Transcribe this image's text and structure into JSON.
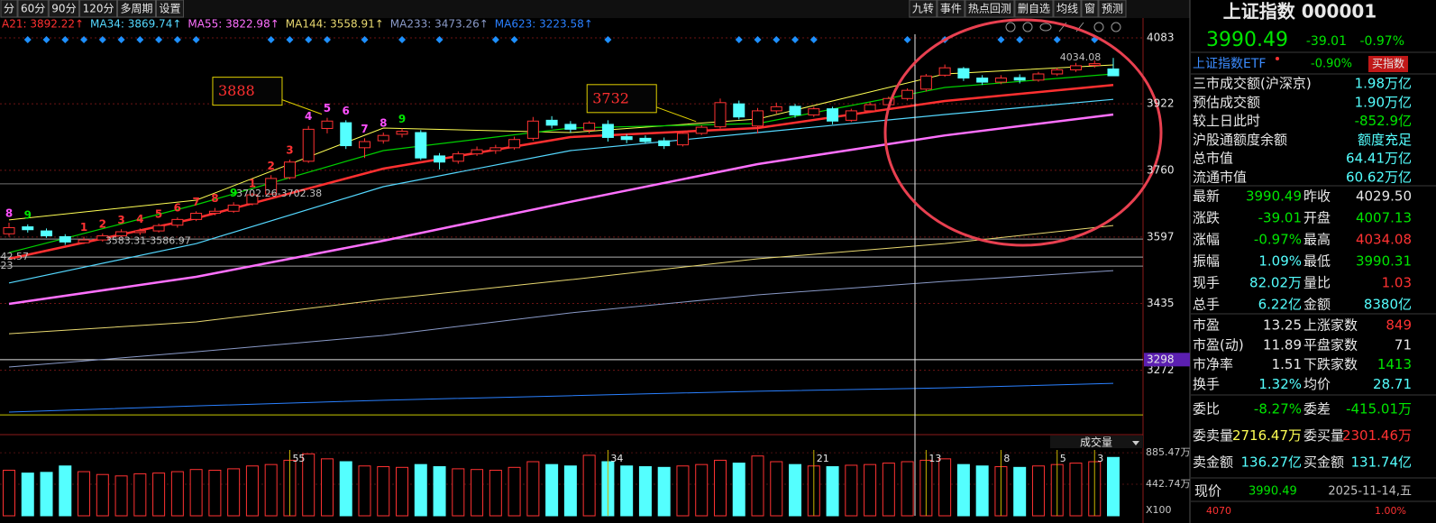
{
  "toolbar": {
    "left": [
      "分",
      "60分",
      "90分",
      "120分",
      "多周期",
      "设置"
    ],
    "right": [
      "九转",
      "事件",
      "热点回测",
      "删自选",
      "均线",
      "窗",
      "预测"
    ]
  },
  "chart_data": [
    {
      "type": "candlestick",
      "ylim": [
        3115,
        4105
      ],
      "yticks": [
        4083,
        3922,
        3760,
        3597,
        3435,
        3272
      ],
      "grid": true,
      "grid_color": "#6e1414",
      "up_color": "#ff3232",
      "down_color": "#54ffff",
      "ohlc": [
        [
          3605,
          3632,
          3598,
          3620
        ],
        [
          3622,
          3628,
          3608,
          3615
        ],
        [
          3612,
          3618,
          3595,
          3600
        ],
        [
          3598,
          3604,
          3578,
          3585
        ],
        [
          3583,
          3598,
          3580,
          3590
        ],
        [
          3590,
          3606,
          3586,
          3600
        ],
        [
          3600,
          3616,
          3596,
          3610
        ],
        [
          3608,
          3618,
          3602,
          3612
        ],
        [
          3612,
          3630,
          3608,
          3625
        ],
        [
          3626,
          3645,
          3620,
          3640
        ],
        [
          3640,
          3660,
          3636,
          3655
        ],
        [
          3655,
          3668,
          3650,
          3660
        ],
        [
          3660,
          3682,
          3656,
          3675
        ],
        [
          3678,
          3705,
          3674,
          3700
        ],
        [
          3702,
          3748,
          3700,
          3740
        ],
        [
          3742,
          3786,
          3738,
          3780
        ],
        [
          3782,
          3868,
          3778,
          3860
        ],
        [
          3862,
          3888,
          3850,
          3880
        ],
        [
          3876,
          3882,
          3812,
          3820
        ],
        [
          3815,
          3838,
          3790,
          3830
        ],
        [
          3832,
          3852,
          3825,
          3845
        ],
        [
          3848,
          3862,
          3840,
          3855
        ],
        [
          3852,
          3858,
          3785,
          3790
        ],
        [
          3795,
          3802,
          3762,
          3780
        ],
        [
          3782,
          3806,
          3776,
          3800
        ],
        [
          3800,
          3818,
          3795,
          3810
        ],
        [
          3808,
          3822,
          3800,
          3815
        ],
        [
          3815,
          3842,
          3810,
          3835
        ],
        [
          3838,
          3890,
          3832,
          3880
        ],
        [
          3882,
          3892,
          3862,
          3870
        ],
        [
          3872,
          3880,
          3852,
          3860
        ],
        [
          3858,
          3880,
          3850,
          3875
        ],
        [
          3872,
          3882,
          3830,
          3840
        ],
        [
          3842,
          3848,
          3826,
          3835
        ],
        [
          3838,
          3845,
          3825,
          3830
        ],
        [
          3832,
          3840,
          3812,
          3820
        ],
        [
          3822,
          3856,
          3818,
          3850
        ],
        [
          3850,
          3870,
          3846,
          3865
        ],
        [
          3866,
          3935,
          3862,
          3925
        ],
        [
          3922,
          3930,
          3884,
          3890
        ],
        [
          3868,
          3912,
          3850,
          3905
        ],
        [
          3905,
          3925,
          3898,
          3915
        ],
        [
          3916,
          3922,
          3888,
          3895
        ],
        [
          3895,
          3915,
          3890,
          3910
        ],
        [
          3910,
          3915,
          3872,
          3880
        ],
        [
          3882,
          3910,
          3878,
          3905
        ],
        [
          3905,
          3926,
          3900,
          3920
        ],
        [
          3920,
          3940,
          3915,
          3935
        ],
        [
          3935,
          3960,
          3930,
          3955
        ],
        [
          3958,
          3995,
          3952,
          3990
        ],
        [
          3992,
          4018,
          3988,
          4010
        ],
        [
          4008,
          4012,
          3978,
          3985
        ],
        [
          3985,
          3992,
          3968,
          3975
        ],
        [
          3975,
          3992,
          3970,
          3985
        ],
        [
          3986,
          3994,
          3972,
          3980
        ],
        [
          3980,
          4000,
          3976,
          3995
        ],
        [
          3995,
          4010,
          3990,
          4005
        ],
        [
          4005,
          4022,
          4000,
          4015
        ],
        [
          4016,
          4028,
          4010,
          4020
        ],
        [
          4007.13,
          4034.08,
          3990.31,
          3990.49
        ]
      ],
      "lines": [
        {
          "color": "#ffff54",
          "width": 1,
          "x": [
            0,
            10,
            20,
            30,
            40,
            50,
            59
          ],
          "values": [
            3639,
            3687,
            3863,
            3852,
            3885,
            3995,
            4017
          ]
        },
        {
          "color": "#00d000",
          "width": 1.2,
          "x": [
            0,
            10,
            20,
            30,
            40,
            50,
            59
          ],
          "values": [
            3559,
            3676,
            3808,
            3863,
            3874,
            3962,
            3995
          ]
        },
        {
          "label": "A21: 3892.22↑",
          "color": "#ff3030",
          "width": 2.5,
          "x": [
            0,
            10,
            20,
            30,
            40,
            50,
            59
          ],
          "values": [
            3544,
            3643,
            3764,
            3841,
            3863,
            3929,
            3968
          ]
        },
        {
          "label": "MA34: 3869.74↑",
          "color": "#54d8ff",
          "width": 1.2,
          "x": [
            0,
            10,
            20,
            30,
            40,
            50,
            59
          ],
          "values": [
            3485,
            3581,
            3720,
            3808,
            3852,
            3896,
            3933
          ]
        },
        {
          "label": "MA55: 3822.98↑",
          "color": "#ff70ff",
          "width": 2.5,
          "x": [
            0,
            10,
            20,
            30,
            40,
            50,
            59
          ],
          "values": [
            3434,
            3500,
            3588,
            3683,
            3775,
            3845,
            3896
          ]
        },
        {
          "label": "MA144: 3558.91↑",
          "color": "#e8d870",
          "width": 1,
          "x": [
            0,
            10,
            20,
            30,
            40,
            50,
            59
          ],
          "values": [
            3361,
            3390,
            3445,
            3493,
            3544,
            3581,
            3625
          ]
        },
        {
          "label": "MA233: 3473.26↑",
          "color": "#8a9ac8",
          "width": 1,
          "x": [
            0,
            10,
            20,
            30,
            40,
            50,
            59
          ],
          "values": [
            3280,
            3317,
            3357,
            3412,
            3456,
            3489,
            3515
          ]
        },
        {
          "label": "MA623: 3223.58↑",
          "color": "#2a80ff",
          "width": 1,
          "x": [
            0,
            10,
            20,
            30,
            40,
            50,
            59
          ],
          "values": [
            3170,
            3185,
            3199,
            3210,
            3221,
            3229,
            3240
          ]
        }
      ],
      "level_lines": [
        {
          "value": 3298,
          "color": "#e0e0e0",
          "label_bg": "#5b1fb0"
        },
        {
          "value": 3163,
          "color": "#c8c800"
        },
        {
          "value": 3727,
          "color": "#707070"
        },
        {
          "value": 3592,
          "color": "#9a9a9a"
        },
        {
          "value": 3548,
          "color": "#b0b0b0"
        },
        {
          "value": 3526,
          "color": "#9a9a9a"
        }
      ],
      "annotations": [
        {
          "text": "3888",
          "x": 17,
          "y": 3888
        },
        {
          "text": "3732",
          "x": 37,
          "y": 3870
        }
      ],
      "price_labels": [
        {
          "text": "4034.08",
          "x": 56,
          "y": 4034.08
        },
        {
          "text": "3702.26-3702.38",
          "x": 12,
          "y": 3702.38
        },
        {
          "text": "3583.31-3586.97",
          "x": 5,
          "y": 3586.97
        },
        {
          "text": "42.57",
          "x": -0.6,
          "y": 3548
        },
        {
          "text": "23",
          "x": -0.6,
          "y": 3526
        }
      ],
      "td_counts": [
        {
          "x": 0,
          "count": 8,
          "color": "#ff50ff"
        },
        {
          "x": 1,
          "count": 9,
          "color": "#00e600"
        },
        {
          "x": 4,
          "count": 1,
          "color": "#ff3232"
        },
        {
          "x": 5,
          "count": 2,
          "color": "#ff3232"
        },
        {
          "x": 6,
          "count": 3,
          "color": "#ff3232"
        },
        {
          "x": 7,
          "count": 4,
          "color": "#ff3232"
        },
        {
          "x": 8,
          "count": 5,
          "color": "#ff3232"
        },
        {
          "x": 9,
          "count": 6,
          "color": "#ff3232"
        },
        {
          "x": 10,
          "count": 7,
          "color": "#ff3232"
        },
        {
          "x": 11,
          "count": 8,
          "color": "#ff3232"
        },
        {
          "x": 12,
          "count": 9,
          "color": "#00e600"
        },
        {
          "x": 13,
          "count": 1,
          "color": "#ff3232"
        },
        {
          "x": 14,
          "count": 2,
          "color": "#ff3232"
        },
        {
          "x": 15,
          "count": 3,
          "color": "#ff3232"
        },
        {
          "x": 16,
          "count": 4,
          "color": "#ff50ff"
        },
        {
          "x": 17,
          "count": 5,
          "color": "#ff50ff"
        },
        {
          "x": 18,
          "count": 6,
          "color": "#ff50ff"
        },
        {
          "x": 19,
          "count": 7,
          "color": "#ff50ff"
        },
        {
          "x": 20,
          "count": 8,
          "color": "#ff50ff"
        },
        {
          "x": 21,
          "count": 9,
          "color": "#00e600"
        }
      ],
      "event_markers": {
        "color": "#1e90ff",
        "x": [
          1,
          2,
          3,
          4,
          5,
          6,
          7,
          8,
          9,
          10,
          14,
          15,
          16,
          17,
          19,
          21,
          23,
          26,
          27,
          32,
          39,
          40,
          41,
          42,
          43,
          48,
          50,
          53,
          54,
          56,
          58
        ]
      }
    },
    {
      "type": "bar",
      "title": "成交量",
      "ylim": [
        0,
        950
      ],
      "yticks": [
        {
          "value": 885.47,
          "label": "885.47万"
        },
        {
          "value": 442.74,
          "label": "442.74万"
        }
      ],
      "unit_label": "X100",
      "values": [
        640,
        600,
        610,
        700,
        620,
        580,
        560,
        590,
        600,
        620,
        650,
        640,
        660,
        700,
        720,
        780,
        870,
        800,
        760,
        700,
        690,
        680,
        720,
        690,
        660,
        650,
        640,
        680,
        760,
        720,
        700,
        850,
        760,
        700,
        690,
        680,
        700,
        720,
        780,
        740,
        840,
        760,
        720,
        700,
        690,
        710,
        720,
        740,
        760,
        780,
        800,
        720,
        700,
        690,
        680,
        700,
        720,
        740,
        760,
        820
      ],
      "fib_markers": {
        "color": "#c8b400",
        "items": [
          {
            "x": 15,
            "n": 55
          },
          {
            "x": 32,
            "n": 34
          },
          {
            "x": 43,
            "n": 21
          },
          {
            "x": 49,
            "n": 13
          },
          {
            "x": 53,
            "n": 8
          },
          {
            "x": 56,
            "n": 5
          },
          {
            "x": 58,
            "n": 3
          }
        ]
      }
    }
  ],
  "quote_panel": {
    "title": "上证指数 000001",
    "price": "3990.49",
    "change": "-39.01",
    "change_pct": "-0.97%",
    "etf": {
      "name": "上证指数ETF",
      "change_pct": "-0.90%",
      "button": "买指数"
    },
    "stats": [
      {
        "k": "三市成交额(沪深京)",
        "v": "1.98万亿",
        "c": "#54ffff"
      },
      {
        "k": "预估成交额",
        "v": "1.90万亿",
        "c": "#54ffff"
      },
      {
        "k": "较上日此时",
        "v": "-852.9亿",
        "c": "#00e600"
      },
      {
        "k": "沪股通额度余额",
        "v": "额度充足",
        "c": "#54ffff"
      },
      {
        "k": "总市值",
        "v": "64.41万亿",
        "c": "#54ffff"
      },
      {
        "k": "流通市值",
        "v": "60.62万亿",
        "c": "#54ffff"
      }
    ],
    "grid": [
      [
        {
          "k": "最新",
          "v": "3990.49",
          "c": "#00e600"
        },
        {
          "k": "昨收",
          "v": "4029.50",
          "c": "#e8e8e8"
        }
      ],
      [
        {
          "k": "涨跌",
          "v": "-39.01",
          "c": "#00e600"
        },
        {
          "k": "开盘",
          "v": "4007.13",
          "c": "#00e600"
        }
      ],
      [
        {
          "k": "涨幅",
          "v": "-0.97%",
          "c": "#00e600"
        },
        {
          "k": "最高",
          "v": "4034.08",
          "c": "#ff3232"
        }
      ],
      [
        {
          "k": "振幅",
          "v": "1.09%",
          "c": "#54ffff"
        },
        {
          "k": "最低",
          "v": "3990.31",
          "c": "#00e600"
        }
      ],
      [
        {
          "k": "现手",
          "v": "82.02万",
          "c": "#54ffff"
        },
        {
          "k": "量比",
          "v": "1.03",
          "c": "#ff3232"
        }
      ],
      [
        {
          "k": "总手",
          "v": "6.22亿",
          "c": "#54ffff"
        },
        {
          "k": "金额",
          "v": "8380亿",
          "c": "#54ffff"
        }
      ]
    ],
    "market": [
      [
        {
          "k": "市盈",
          "v": "13.25",
          "c": "#e8e8e8"
        },
        {
          "k": "上涨家数",
          "v": "849",
          "c": "#ff3232"
        }
      ],
      [
        {
          "k": "市盈(动)",
          "v": "11.89",
          "c": "#e8e8e8"
        },
        {
          "k": "平盘家数",
          "v": "71",
          "c": "#e8e8e8"
        }
      ],
      [
        {
          "k": "市净率",
          "v": "1.51",
          "c": "#e8e8e8"
        },
        {
          "k": "下跌家数",
          "v": "1413",
          "c": "#00e600"
        }
      ],
      [
        {
          "k": "换手",
          "v": "1.32%",
          "c": "#54ffff"
        },
        {
          "k": "均价",
          "v": "28.71",
          "c": "#54ffff"
        }
      ]
    ],
    "orders": [
      [
        {
          "k": "委比",
          "v": "-8.27%",
          "c": "#00e600"
        },
        {
          "k": "委差",
          "v": "-415.01万",
          "c": "#00e600"
        }
      ],
      [
        {
          "k": "委卖量",
          "v": "2716.47万",
          "c": "#ffff54"
        },
        {
          "k": "委买量",
          "v": "2301.46万",
          "c": "#ff3232"
        }
      ],
      [
        {
          "k": "卖金额",
          "v": "136.27亿",
          "c": "#54ffff"
        },
        {
          "k": "买金额",
          "v": "131.74亿",
          "c": "#54ffff"
        }
      ]
    ],
    "footer": {
      "label": "现价",
      "price": "3990.49",
      "date": "2025-11-14,五",
      "low_price": "4070",
      "low_pct": "1.00%"
    }
  }
}
